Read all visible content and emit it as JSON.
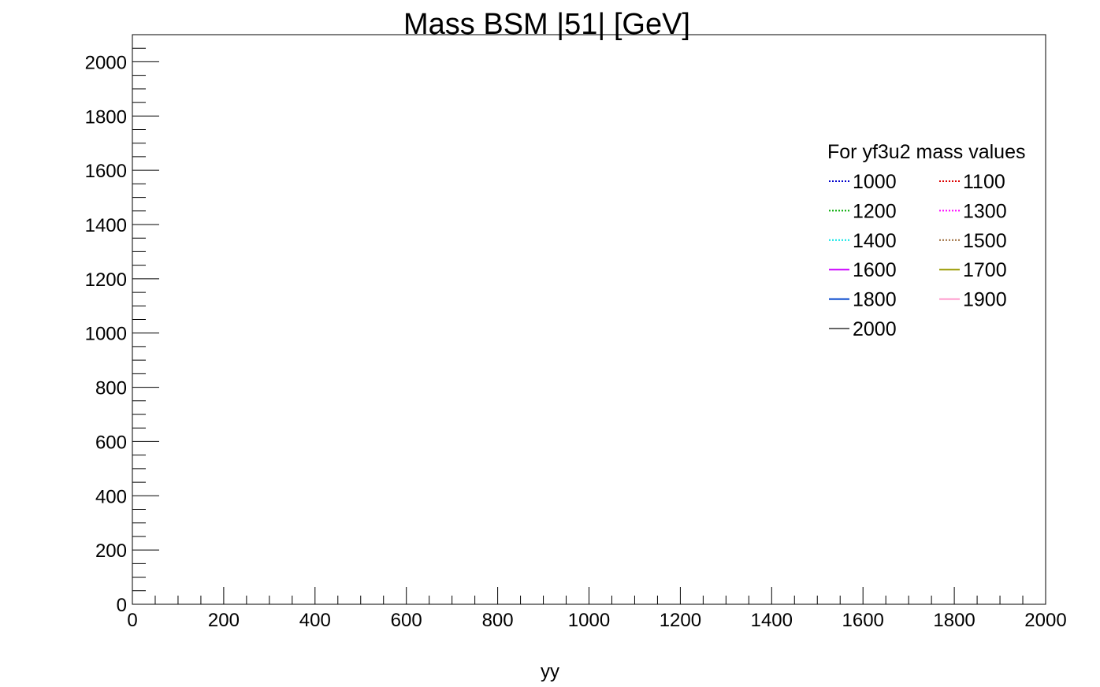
{
  "chart_data": {
    "type": "line",
    "title": "Mass BSM |51| [GeV]",
    "xlabel": "yy",
    "ylabel": "",
    "xlim": [
      0,
      2000
    ],
    "ylim": [
      0,
      2100
    ],
    "x_ticks": [
      "0",
      "200",
      "400",
      "600",
      "800",
      "1000",
      "1200",
      "1400",
      "1600",
      "1800",
      "2000"
    ],
    "y_ticks": [
      "0",
      "200",
      "400",
      "600",
      "800",
      "1000",
      "1200",
      "1400",
      "1600",
      "1800",
      "2000"
    ],
    "grid": false,
    "legend": {
      "title": "For yf3u2 mass values",
      "placement": "top-right",
      "columns": 2
    },
    "series": [
      {
        "name": "1000",
        "color": "#0000cc",
        "dash": "dotted",
        "values": []
      },
      {
        "name": "1100",
        "color": "#dd0000",
        "dash": "dotted",
        "values": []
      },
      {
        "name": "1200",
        "color": "#00aa00",
        "dash": "dotted",
        "values": []
      },
      {
        "name": "1300",
        "color": "#ff00ff",
        "dash": "dotted",
        "values": []
      },
      {
        "name": "1400",
        "color": "#00e5e5",
        "dash": "dotted",
        "values": []
      },
      {
        "name": "1500",
        "color": "#996633",
        "dash": "dotted",
        "values": []
      },
      {
        "name": "1600",
        "color": "#cc00ff",
        "dash": "solid",
        "values": []
      },
      {
        "name": "1700",
        "color": "#999900",
        "dash": "solid",
        "values": []
      },
      {
        "name": "1800",
        "color": "#0044cc",
        "dash": "solid",
        "values": []
      },
      {
        "name": "1900",
        "color": "#ff99cc",
        "dash": "solid",
        "values": []
      },
      {
        "name": "2000",
        "color": "#666666",
        "dash": "solid",
        "values": []
      }
    ]
  }
}
